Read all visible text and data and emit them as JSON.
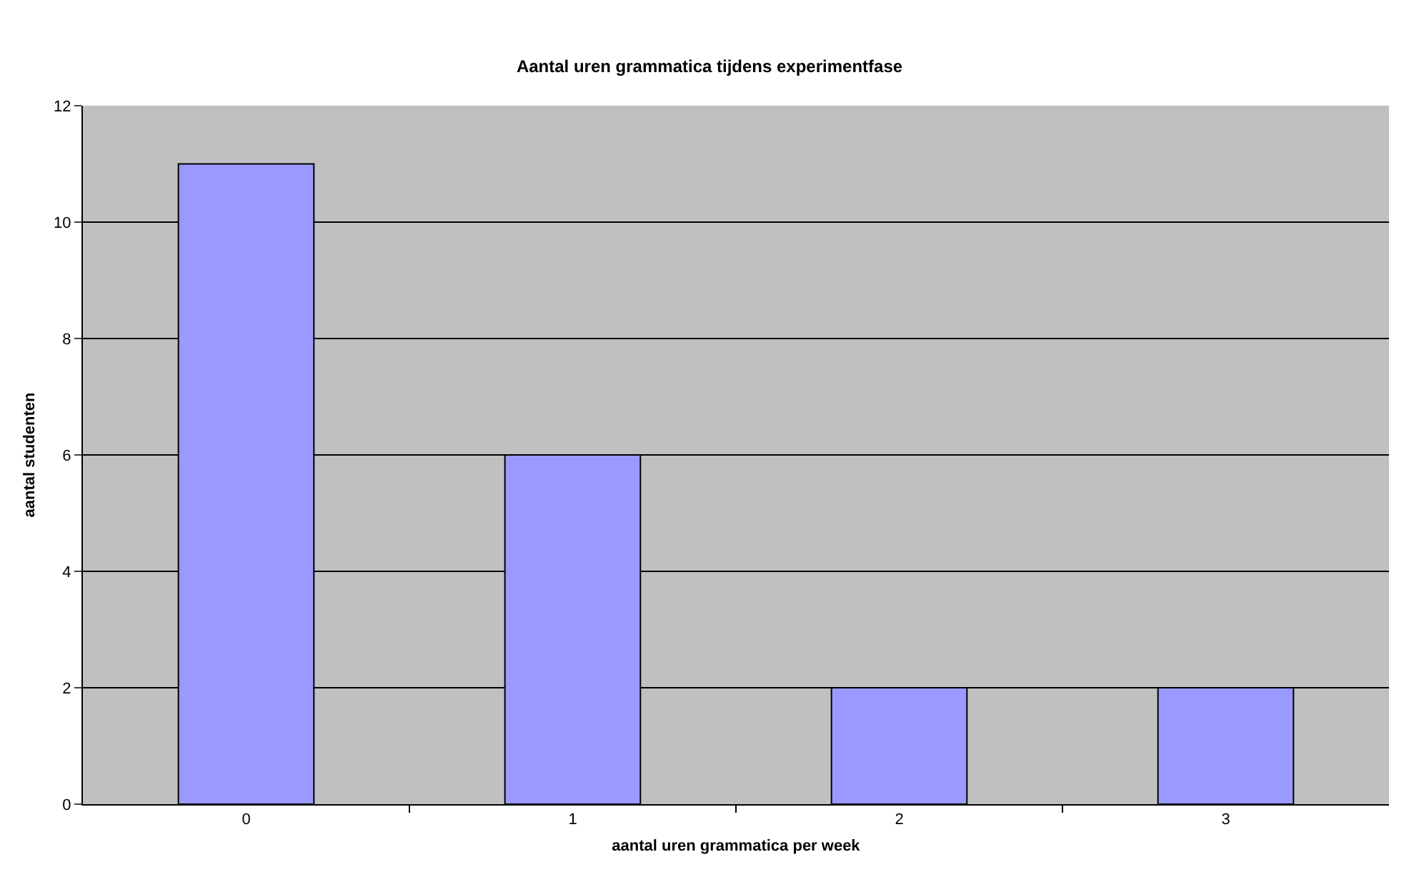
{
  "chart_data": {
    "type": "bar",
    "title": "Aantal uren grammatica tijdens experimentfase",
    "xlabel": "aantal uren grammatica per week",
    "ylabel": "aantal studenten",
    "categories": [
      "0",
      "1",
      "2",
      "3"
    ],
    "values": [
      11,
      6,
      2,
      2
    ],
    "color": "#9999ff",
    "ylim": [
      0,
      12
    ],
    "yticks": [
      0,
      2,
      4,
      6,
      8,
      10,
      12
    ],
    "grid": "y",
    "legend": false
  }
}
